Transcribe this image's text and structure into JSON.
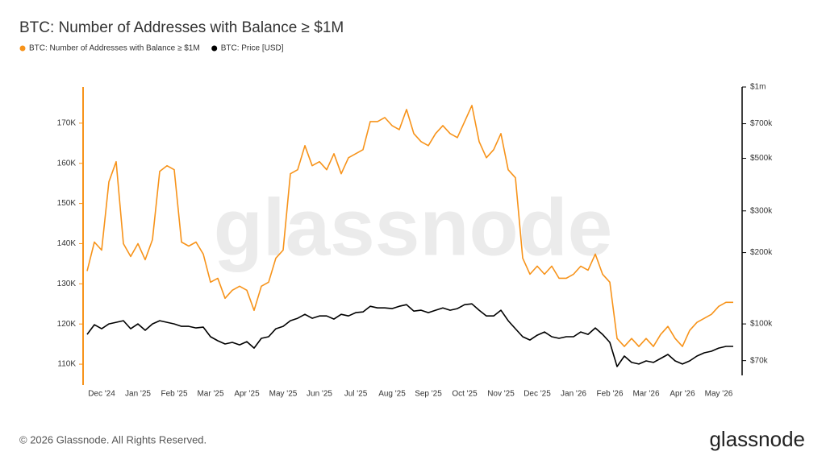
{
  "chart_data": {
    "type": "line",
    "title": "BTC: Number of Addresses with Balance ≥ $1M",
    "watermark": "glassnode",
    "footer": "© 2026 Glassnode. All Rights Reserved.",
    "logo": "glassnode",
    "categories": [
      null,
      null,
      "Dec '24",
      null,
      null,
      null,
      null,
      "Jan '25",
      null,
      null,
      null,
      null,
      "Feb '25",
      null,
      null,
      null,
      null,
      "Mar '25",
      null,
      null,
      null,
      null,
      "Apr '25",
      null,
      null,
      null,
      null,
      "May '25",
      null,
      null,
      null,
      null,
      "Jun '25",
      null,
      null,
      null,
      null,
      "Jul '25",
      null,
      null,
      null,
      null,
      "Aug '25",
      null,
      null,
      null,
      null,
      "Sep '25",
      null,
      null,
      null,
      null,
      "Oct '25",
      null,
      null,
      null,
      null,
      "Nov '25",
      null,
      null,
      null,
      null,
      "Dec '25",
      null,
      null,
      null,
      null,
      "Jan '26",
      null,
      null,
      null,
      null,
      "Feb '26",
      null,
      null,
      null,
      null,
      "Mar '26",
      null,
      null,
      null,
      null,
      "Apr '26",
      null,
      null,
      null,
      null,
      "May '26",
      null,
      null
    ],
    "series": [
      {
        "name": "BTC: Number of Addresses with Balance ≥ $1M",
        "color": "#f7931a",
        "axis": "y",
        "values": [
          133200,
          140400,
          138400,
          155400,
          160400,
          140000,
          136800,
          140000,
          136000,
          141000,
          158000,
          159400,
          158400,
          140400,
          139400,
          140400,
          137400,
          130400,
          131400,
          126400,
          128400,
          129400,
          128400,
          123400,
          129400,
          130400,
          136400,
          138400,
          157400,
          158400,
          164400,
          159400,
          160400,
          158400,
          162400,
          157400,
          161400,
          162400,
          163400,
          170400,
          170400,
          171400,
          169400,
          168400,
          173400,
          167400,
          165400,
          164400,
          167400,
          169400,
          167400,
          166400,
          170400,
          174400,
          165400,
          161400,
          163400,
          167400,
          158400,
          156400,
          136400,
          132400,
          134400,
          132400,
          134400,
          131400,
          131400,
          132400,
          134400,
          133400,
          137400,
          132400,
          130400,
          116400,
          114400,
          116400,
          114400,
          116400,
          114400,
          117400,
          119400,
          116400,
          114400,
          118400,
          120400,
          121400,
          122400,
          124400,
          125400,
          125400
        ]
      },
      {
        "name": "BTC: Price [USD]",
        "color": "#000000",
        "axis": "y2",
        "values": [
          90300,
          99200,
          95400,
          100000,
          101600,
          103200,
          95400,
          100000,
          94000,
          100000,
          103200,
          101600,
          100000,
          97700,
          97700,
          96200,
          96900,
          88300,
          84900,
          82300,
          83600,
          81600,
          84200,
          79100,
          86900,
          88300,
          95400,
          97700,
          103200,
          105600,
          109800,
          105600,
          108100,
          108100,
          104800,
          109800,
          108100,
          111600,
          112400,
          118700,
          116900,
          116900,
          116000,
          118700,
          120600,
          113300,
          114200,
          111600,
          114200,
          116900,
          114200,
          116000,
          120600,
          121500,
          114200,
          108100,
          108100,
          114200,
          103200,
          95400,
          88300,
          85500,
          89600,
          92500,
          88300,
          86900,
          88300,
          88300,
          92500,
          90300,
          96200,
          90300,
          83600,
          66100,
          73200,
          68800,
          67700,
          69800,
          68800,
          71500,
          74300,
          69800,
          67700,
          69800,
          73200,
          75500,
          76700,
          79100,
          80400,
          80400
        ]
      }
    ],
    "ylim": [
      104800,
      179000
    ],
    "yticks": [
      {
        "value": 110000,
        "label": "110K"
      },
      {
        "value": 120000,
        "label": "120K"
      },
      {
        "value": 130000,
        "label": "130K"
      },
      {
        "value": 140000,
        "label": "140K"
      },
      {
        "value": 150000,
        "label": "150K"
      },
      {
        "value": 160000,
        "label": "160K"
      },
      {
        "value": 170000,
        "label": "170K"
      }
    ],
    "y2lim": [
      55200,
      1000000
    ],
    "y2log": true,
    "y2ticks": [
      {
        "value": 70000,
        "label": "$70k"
      },
      {
        "value": 100000,
        "label": "$100k"
      },
      {
        "value": 200000,
        "label": "$200k"
      },
      {
        "value": 300000,
        "label": "$300k"
      },
      {
        "value": 500000,
        "label": "$500k"
      },
      {
        "value": 700000,
        "label": "$700k"
      },
      {
        "value": 1000000,
        "label": "$1m"
      }
    ],
    "grid": false
  }
}
